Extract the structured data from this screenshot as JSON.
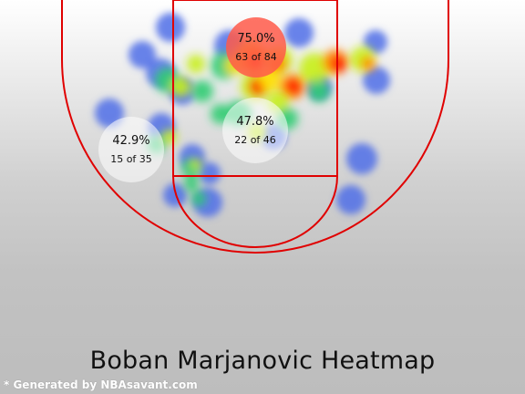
{
  "title": "Boban Marjanovic Heatmap",
  "footer": "* Generated by NBAsavant.com",
  "colors": {
    "court_line": "#e00000",
    "background_top": "#ffffff",
    "background_bottom": "#bdbdbd"
  },
  "chart_data": {
    "type": "heatmap",
    "title": "Boban Marjanovic Heatmap",
    "zones": [
      {
        "name": "restricted",
        "pct": "75.0%",
        "made": 63,
        "attempts": 84,
        "label": "63 of 84"
      },
      {
        "name": "paint",
        "pct": "47.8%",
        "made": 22,
        "attempts": 46,
        "label": "22 of 46"
      },
      {
        "name": "mid-range-left",
        "pct": "42.9%",
        "made": 15,
        "attempts": 35,
        "label": "15 of 35"
      }
    ],
    "color_scale": [
      "#4f6fe8",
      "#2ecc71",
      "#c8ef1a",
      "#ffe000",
      "#ff8800",
      "#ff1800"
    ]
  }
}
